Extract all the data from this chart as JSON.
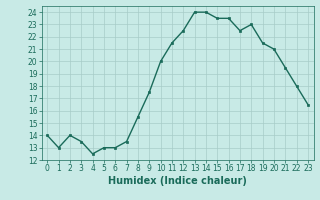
{
  "x": [
    0,
    1,
    2,
    3,
    4,
    5,
    6,
    7,
    8,
    9,
    10,
    11,
    12,
    13,
    14,
    15,
    16,
    17,
    18,
    19,
    20,
    21,
    22,
    23
  ],
  "y": [
    14,
    13,
    14,
    13.5,
    12.5,
    13,
    13,
    13.5,
    15.5,
    17.5,
    20,
    21.5,
    22.5,
    24,
    24,
    23.5,
    23.5,
    22.5,
    23,
    21.5,
    21,
    19.5,
    18,
    16.5
  ],
  "line_color": "#1a6b5a",
  "marker_color": "#1a6b5a",
  "bg_color": "#c8eae6",
  "grid_color": "#a8ccc8",
  "xlabel": "Humidex (Indice chaleur)",
  "xlim": [
    -0.5,
    23.5
  ],
  "ylim": [
    12,
    24.5
  ],
  "yticks": [
    12,
    13,
    14,
    15,
    16,
    17,
    18,
    19,
    20,
    21,
    22,
    23,
    24
  ],
  "xticks": [
    0,
    1,
    2,
    3,
    4,
    5,
    6,
    7,
    8,
    9,
    10,
    11,
    12,
    13,
    14,
    15,
    16,
    17,
    18,
    19,
    20,
    21,
    22,
    23
  ],
  "tick_label_fontsize": 5.5,
  "xlabel_fontsize": 7.0,
  "line_width": 1.0,
  "marker_size": 2.0
}
